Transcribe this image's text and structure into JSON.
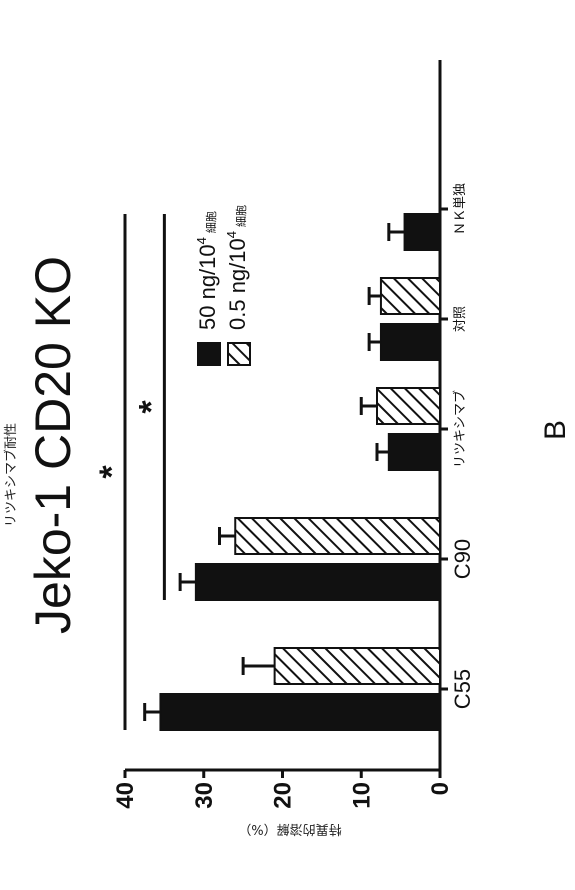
{
  "chart_data": {
    "type": "bar",
    "title": "Jeko-1 CD20 KO",
    "subtitle": "リツキシマブ耐性",
    "ylabel": "特異的溶解（%）",
    "ylim": [
      0,
      40
    ],
    "yticks": [
      "0",
      "10",
      "20",
      "30",
      "40"
    ],
    "categories": [
      "C55",
      "C90",
      "リツキシマブ",
      "対照",
      "ＮＫ単独"
    ],
    "series": [
      {
        "name": "50 ng/10",
        "sup": "4",
        "unit": "細胞",
        "pattern": "solid",
        "values": [
          35.5,
          31,
          6.5,
          7.5,
          4.5
        ],
        "errors": [
          2.0,
          2.0,
          1.5,
          1.5,
          2.0
        ]
      },
      {
        "name": "0.5 ng/10",
        "sup": "4",
        "unit": "細胞",
        "pattern": "hatched",
        "values": [
          21,
          26,
          8,
          7.5,
          null
        ],
        "errors": [
          4.0,
          2.0,
          2.0,
          1.5,
          null
        ]
      }
    ],
    "significance": [
      {
        "label": "*",
        "from": "C55",
        "to": "ＮＫ単独",
        "y": 40
      },
      {
        "label": "*",
        "from": "C90",
        "to": "ＮＫ単独",
        "y": 35
      }
    ],
    "panel_label": "B",
    "legend_position": "upper-right",
    "grid": false
  }
}
